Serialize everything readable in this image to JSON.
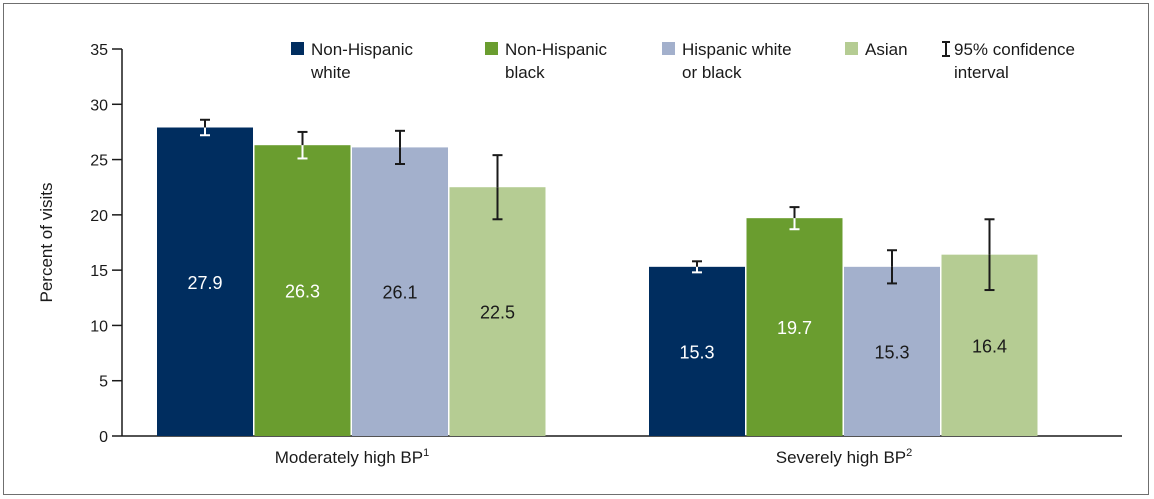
{
  "chart_data": {
    "type": "bar",
    "categories": [
      "Moderately high BP",
      "Severely high BP"
    ],
    "category_superscripts": [
      "1",
      "2"
    ],
    "ylabel": "Percent of visits",
    "ylim": [
      0,
      35
    ],
    "yticks": [
      0,
      5,
      10,
      15,
      20,
      25,
      30,
      35
    ],
    "grid": false,
    "legend_position": "top-right",
    "series": [
      {
        "legend_lines": [
          "Non-Hispanic",
          "white"
        ],
        "color": "#002d5f",
        "label_color": "#ffffff",
        "values": [
          27.9,
          15.3
        ],
        "value_labels": [
          "27.9",
          "15.3"
        ],
        "ci": [
          [
            27.2,
            28.6
          ],
          [
            14.8,
            15.8
          ]
        ]
      },
      {
        "legend_lines": [
          "Non-Hispanic",
          "black"
        ],
        "color": "#6a9d2f",
        "label_color": "#ffffff",
        "values": [
          26.3,
          19.7
        ],
        "value_labels": [
          "26.3",
          "19.7"
        ],
        "ci": [
          [
            25.1,
            27.5
          ],
          [
            18.7,
            20.7
          ]
        ]
      },
      {
        "legend_lines": [
          "Hispanic white",
          "or black"
        ],
        "color": "#a3b0cc",
        "label_color": "#1a1a1a",
        "values": [
          26.1,
          15.3
        ],
        "value_labels": [
          "26.1",
          "15.3"
        ],
        "ci": [
          [
            24.6,
            27.6
          ],
          [
            13.8,
            16.8
          ]
        ]
      },
      {
        "legend_lines": [
          "Asian"
        ],
        "color": "#b5cc93",
        "label_color": "#1a1a1a",
        "values": [
          22.5,
          16.4
        ],
        "value_labels": [
          "22.5",
          "16.4"
        ],
        "ci": [
          [
            19.6,
            25.4
          ],
          [
            13.2,
            19.6
          ]
        ]
      }
    ],
    "ci_legend_lines": [
      "95% confidence",
      "interval"
    ],
    "ci_color_on_dark": "#ffffff",
    "ci_color_on_light": "#1a1a1a"
  }
}
